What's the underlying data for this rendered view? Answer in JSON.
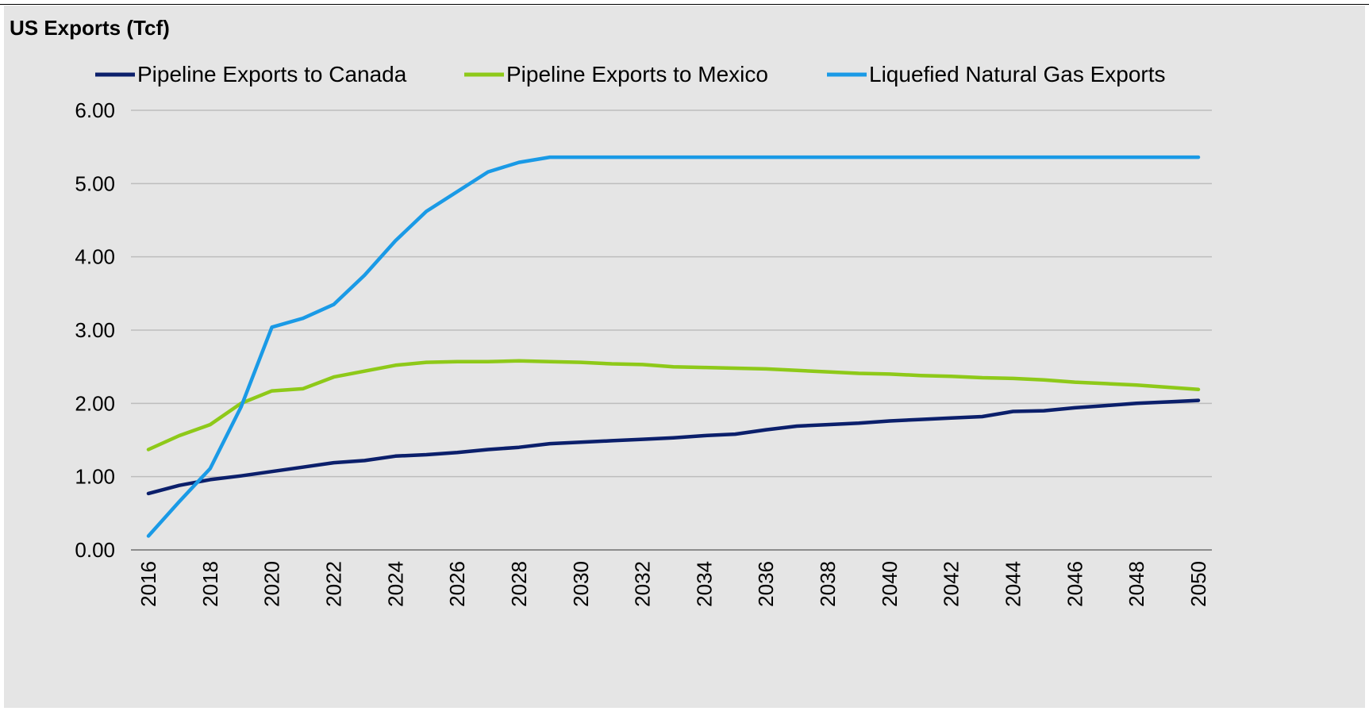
{
  "chart_data": {
    "type": "line",
    "title": "US Exports (Tcf)",
    "x": [
      2016,
      2017,
      2018,
      2019,
      2020,
      2021,
      2022,
      2023,
      2024,
      2025,
      2026,
      2027,
      2028,
      2029,
      2030,
      2031,
      2032,
      2033,
      2034,
      2035,
      2036,
      2037,
      2038,
      2039,
      2040,
      2041,
      2042,
      2043,
      2044,
      2045,
      2046,
      2047,
      2048,
      2049,
      2050
    ],
    "x_tick_labels": [
      "2016",
      "2018",
      "2020",
      "2022",
      "2024",
      "2026",
      "2028",
      "2030",
      "2032",
      "2034",
      "2036",
      "2038",
      "2040",
      "2042",
      "2044",
      "2046",
      "2048",
      "2050"
    ],
    "y_tick_labels": [
      "0.00",
      "1.00",
      "2.00",
      "3.00",
      "4.00",
      "5.00",
      "6.00"
    ],
    "ylim": [
      0,
      6
    ],
    "grid": true,
    "legend_position": "top",
    "series": [
      {
        "name": "Pipeline Exports to Canada",
        "color": "#0b1f6b",
        "values": [
          0.77,
          0.88,
          0.96,
          1.01,
          1.07,
          1.13,
          1.19,
          1.22,
          1.28,
          1.3,
          1.33,
          1.37,
          1.4,
          1.45,
          1.47,
          1.49,
          1.51,
          1.53,
          1.56,
          1.58,
          1.64,
          1.69,
          1.71,
          1.73,
          1.76,
          1.78,
          1.8,
          1.82,
          1.89,
          1.9,
          1.94,
          1.97,
          2.0,
          2.02,
          2.04
        ]
      },
      {
        "name": "Pipeline Exports to Mexico",
        "color": "#8ec919",
        "values": [
          1.37,
          1.56,
          1.71,
          2.0,
          2.17,
          2.2,
          2.36,
          2.44,
          2.52,
          2.56,
          2.57,
          2.57,
          2.58,
          2.57,
          2.56,
          2.54,
          2.53,
          2.5,
          2.49,
          2.48,
          2.47,
          2.45,
          2.43,
          2.41,
          2.4,
          2.38,
          2.37,
          2.35,
          2.34,
          2.32,
          2.29,
          2.27,
          2.25,
          2.22,
          2.19
        ]
      },
      {
        "name": "Liquefied Natural Gas Exports",
        "color": "#1a9ae6",
        "values": [
          0.19,
          0.66,
          1.11,
          1.95,
          3.04,
          3.16,
          3.35,
          3.75,
          4.22,
          4.62,
          4.89,
          5.16,
          5.29,
          5.36,
          5.36,
          5.36,
          5.36,
          5.36,
          5.36,
          5.36,
          5.36,
          5.36,
          5.36,
          5.36,
          5.36,
          5.36,
          5.36,
          5.36,
          5.36,
          5.36,
          5.36,
          5.36,
          5.36,
          5.36,
          5.36
        ]
      }
    ]
  }
}
